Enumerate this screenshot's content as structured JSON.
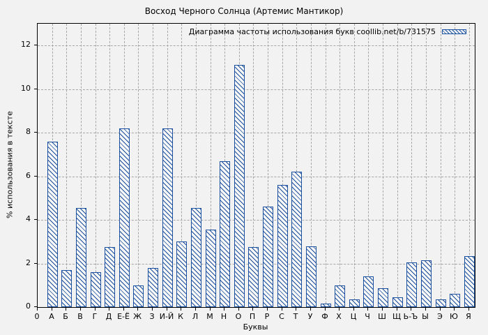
{
  "title": "Восход Черного Солнца (Артемис Мантикор)",
  "legend": {
    "label": "Диаграмма частоты использования букв coollib.net/b/731575",
    "swatch": "hatched-bar-swatch"
  },
  "axes": {
    "y_label": "% использования в тексте",
    "x_label": "Буквы",
    "y_ticks": [
      0,
      2,
      4,
      6,
      8,
      10,
      12
    ],
    "x_origin_label": "0",
    "y_max": 13.0
  },
  "colors": {
    "bar": "#1a4e9e",
    "grid": "#a6a6a6",
    "frame": "#000000",
    "background": "#f2f2f2",
    "bar_fill": "#f7f7f7"
  },
  "chart_data": {
    "type": "bar",
    "title": "Восход Черного Солнца (Артемис Мантикор)",
    "xlabel": "Буквы",
    "ylabel": "% использования в тексте",
    "ylim": [
      0,
      13
    ],
    "grid": true,
    "legend_position": "top-right-inside",
    "series_label": "Диаграмма частоты использования букв coollib.net/b/731575",
    "bar_style": "blue diagonal hatch, outlined",
    "categories": [
      "А",
      "Б",
      "В",
      "Г",
      "Д",
      "Е-Ё",
      "Ж",
      "З",
      "И-Й",
      "К",
      "Л",
      "М",
      "Н",
      "О",
      "П",
      "Р",
      "С",
      "Т",
      "У",
      "Ф",
      "Х",
      "Ц",
      "Ч",
      "Ш",
      "Щ",
      "Ь-Ъ",
      "Ы",
      "Э",
      "Ю",
      "Я"
    ],
    "values": [
      7.6,
      1.7,
      4.55,
      1.6,
      2.75,
      8.2,
      1.0,
      1.8,
      8.2,
      3.0,
      4.55,
      3.55,
      6.7,
      11.1,
      2.75,
      4.6,
      5.6,
      6.2,
      2.8,
      0.15,
      1.0,
      0.35,
      1.4,
      0.85,
      0.45,
      2.05,
      2.15,
      0.35,
      0.6,
      2.35
    ]
  }
}
